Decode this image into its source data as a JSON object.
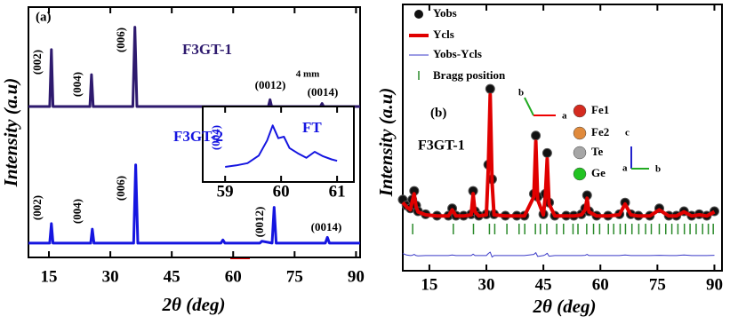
{
  "chart_data": [
    {
      "type": "line",
      "xlabel": "2θ (deg)",
      "ylabel": "Intensity (a.u)",
      "panel_label": "(a)",
      "scale_label": "4 mm",
      "xlim": [
        10,
        91
      ],
      "xticks": [
        15,
        30,
        45,
        60,
        75,
        90
      ],
      "ylim": [
        0,
        100
      ],
      "series": [
        {
          "name": "F3GT-1",
          "color": "#2e1a6e",
          "x": [
            10,
            15.2,
            15.6,
            16,
            25,
            25.4,
            25.8,
            35.5,
            36,
            36.5,
            68.6,
            69,
            69.4,
            81.3,
            81.7,
            82.1,
            91
          ],
          "values": [
            60.3,
            60.3,
            83,
            60.3,
            60.3,
            73,
            60.3,
            60.3,
            92,
            60.3,
            60.3,
            63,
            60.3,
            60.3,
            61.5,
            60.3,
            60.3
          ],
          "peak_labels": [
            "(002)",
            "(004)",
            "(006)",
            "(0012)",
            "(0014)"
          ]
        },
        {
          "name": "F3GT-2",
          "color": "#1515e0",
          "x": [
            10,
            15.2,
            15.6,
            16,
            25.2,
            25.6,
            26,
            35.7,
            36.2,
            36.7,
            57,
            57.5,
            58,
            66.5,
            67,
            69.5,
            70,
            70.5,
            82.5,
            83,
            83.5,
            91
          ],
          "values": [
            5.7,
            5.7,
            13.5,
            5.7,
            5.7,
            11.3,
            5.7,
            5.7,
            37,
            5.7,
            5.7,
            7,
            5.7,
            5.7,
            6.5,
            5.7,
            20,
            5.7,
            5.7,
            8,
            5.7,
            5.7
          ],
          "peak_labels": [
            "(002)",
            "(004)",
            "(006)",
            "(0012)",
            "(0014)"
          ]
        }
      ]
    },
    {
      "type": "rietveld",
      "xlabel": "2θ (deg)",
      "ylabel": "Intensity (a.u)",
      "panel_label": "(b)",
      "sample": "F3GT-1",
      "xlim": [
        8,
        92
      ],
      "xticks": [
        15,
        30,
        45,
        60,
        75,
        90
      ],
      "ylim": [
        8.6,
        100
      ],
      "x": [
        8,
        9,
        10,
        10.5,
        11,
        11.5,
        12,
        14,
        17,
        20,
        21,
        22,
        24,
        26,
        26.5,
        27,
        28,
        30,
        30.5,
        31,
        31.5,
        32,
        35,
        38,
        40,
        42.5,
        43,
        43.5,
        45,
        45.5,
        46,
        46.5,
        48,
        51,
        53,
        55,
        56,
        56.5,
        57,
        59,
        62,
        65,
        66.5,
        68,
        70,
        73,
        75.5,
        78,
        80,
        82,
        84,
        86,
        88,
        90
      ],
      "series": [
        {
          "name": "Yobs",
          "color": "#000000",
          "style": "points",
          "values": [
            33,
            31,
            30,
            33,
            36,
            31,
            29,
            28,
            27.5,
            27.5,
            30,
            27.5,
            27.5,
            28,
            36,
            29,
            27.5,
            28,
            45,
            71,
            40,
            28,
            27.5,
            27.5,
            27.5,
            35,
            55,
            34,
            28,
            35,
            49,
            32,
            27.5,
            27.5,
            27.5,
            28,
            30,
            34.5,
            29,
            27.5,
            27.5,
            28,
            32,
            28,
            27.5,
            27.5,
            30,
            27.5,
            27.5,
            29,
            27.5,
            28,
            27.5,
            29
          ]
        },
        {
          "name": "Ycls",
          "color": "#e00000",
          "style": "line",
          "width": 4,
          "values": [
            32,
            30.5,
            29.5,
            32.5,
            35,
            30.5,
            28.8,
            27.8,
            27.4,
            27.4,
            29.5,
            27.4,
            27.4,
            27.8,
            35,
            28.8,
            27.4,
            27.8,
            44,
            69,
            39,
            27.8,
            27.4,
            27.4,
            27.4,
            34,
            53,
            33,
            27.8,
            34,
            47,
            31.5,
            27.4,
            27.4,
            27.4,
            27.8,
            29.5,
            33.5,
            28.8,
            27.4,
            27.4,
            27.8,
            31.5,
            27.8,
            27.4,
            27.4,
            29.5,
            27.4,
            27.4,
            28.8,
            27.4,
            27.8,
            27.4,
            28.8
          ]
        },
        {
          "name": "Yobs-Ycls",
          "color": "#3a3ac8",
          "style": "line",
          "width": 1,
          "values": [
            14.5,
            14,
            13.8,
            13.9,
            14.2,
            13.8,
            13.7,
            13.8,
            13.8,
            13.8,
            14,
            13.8,
            13.8,
            13.8,
            14.3,
            13.8,
            13.8,
            13.8,
            14.5,
            15,
            13.3,
            13.8,
            13.8,
            13.8,
            13.8,
            14.2,
            14.8,
            13.5,
            13.8,
            14.1,
            14.6,
            13.6,
            13.8,
            13.8,
            13.8,
            13.8,
            13.9,
            14.2,
            13.8,
            13.8,
            13.8,
            13.8,
            14,
            13.8,
            13.8,
            13.8,
            13.9,
            13.8,
            13.8,
            14,
            13.8,
            13.8,
            13.8,
            13.9
          ]
        }
      ],
      "bragg": {
        "name": "Bragg position",
        "color": "#2a8a2a",
        "positions": [
          10.6,
          21.3,
          26.6,
          30.8,
          32.2,
          35.4,
          38.6,
          40.1,
          42.9,
          44.2,
          45.9,
          48.5,
          50.3,
          52.8,
          54.1,
          56.4,
          58.2,
          59.8,
          62.1,
          63.5,
          65.2,
          66.6,
          68.3,
          70.1,
          71.9,
          73.4,
          75.5,
          77.2,
          78.8,
          80.4,
          82.1,
          83.6,
          85.2,
          86.9,
          88.4,
          89.7
        ]
      },
      "atoms": [
        {
          "name": "Fe1",
          "color": "#d42b1f"
        },
        {
          "name": "Fe2",
          "color": "#e08a3c"
        },
        {
          "name": "Te",
          "color": "#a6a6a6"
        },
        {
          "name": "Ge",
          "color": "#22c322"
        }
      ],
      "axis_labels": [
        "b",
        "a",
        "c",
        "a",
        "b"
      ]
    },
    {
      "type": "line",
      "title": "FT",
      "peak_label": "(004)",
      "xlim": [
        58.6,
        61.3
      ],
      "xticks": [
        59,
        60,
        61
      ],
      "ylim": [
        0,
        100
      ],
      "series": [
        {
          "color": "#1515e0",
          "x": [
            59,
            59.2,
            59.4,
            59.6,
            59.75,
            59.85,
            59.95,
            60.05,
            60.15,
            60.3,
            60.45,
            60.6,
            60.75,
            60.9,
            61
          ],
          "values": [
            20,
            22,
            25,
            35,
            55,
            75,
            58,
            60,
            45,
            38,
            32,
            40,
            34,
            30,
            28
          ]
        }
      ]
    }
  ]
}
